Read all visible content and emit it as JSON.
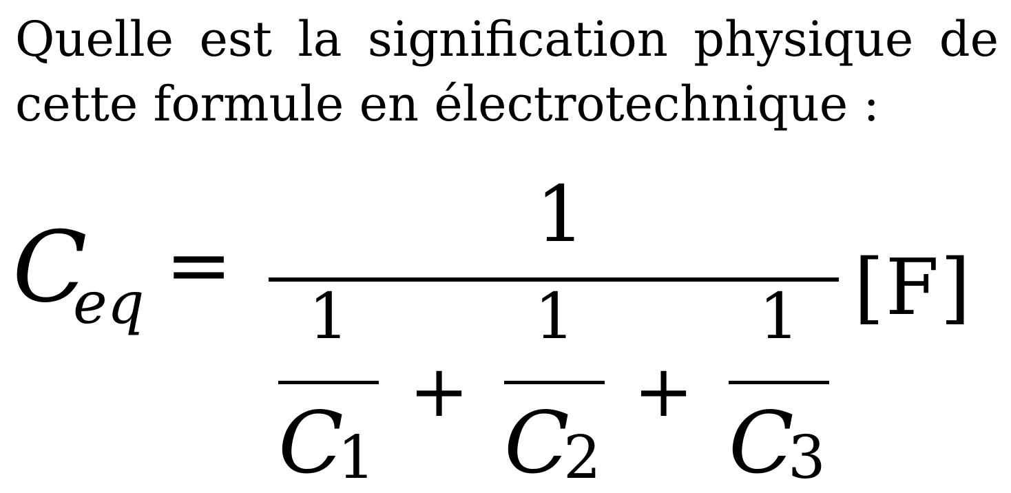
{
  "question": {
    "line1": "Quelle est la signification physique de",
    "line2": "cette formule en électrotechnique :"
  },
  "formula": {
    "lhs_symbol": "C",
    "lhs_subscript": "eq",
    "equals": "=",
    "numerator": "1",
    "terms": [
      {
        "numerator": "1",
        "symbol": "C",
        "subscript": "1"
      },
      {
        "numerator": "1",
        "symbol": "C",
        "subscript": "2"
      },
      {
        "numerator": "1",
        "symbol": "C",
        "subscript": "3"
      }
    ],
    "plus": "+",
    "unit": "[F]"
  }
}
